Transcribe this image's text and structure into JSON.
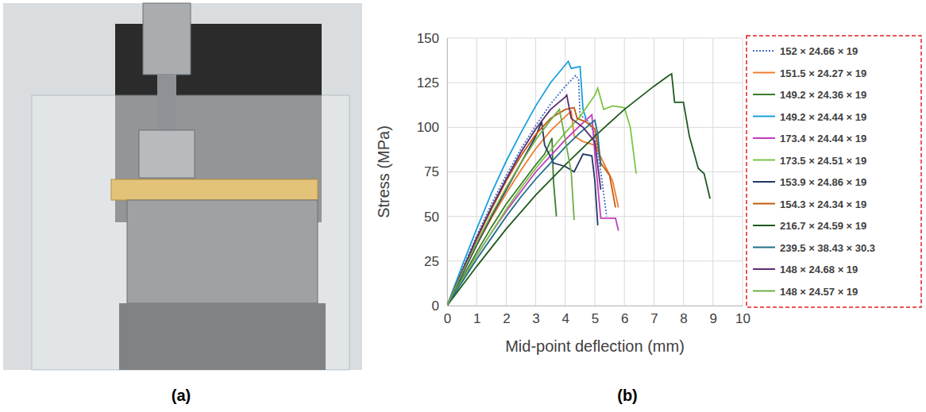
{
  "chart_data": [
    {
      "type": "image",
      "panel": "(a)"
    },
    {
      "type": "line",
      "panel": "(b)",
      "x_label": "Mid-point deflection (mm)",
      "y_label": "Stress (MPa)",
      "xlim": [
        0,
        10
      ],
      "xticks": [
        0,
        1,
        2,
        3,
        4,
        5,
        6,
        7,
        8,
        9,
        10
      ],
      "ylim": [
        0,
        150
      ],
      "yticks": [
        0,
        25,
        50,
        75,
        100,
        125,
        150
      ],
      "grid": true,
      "legend": "right",
      "series": [
        {
          "name": "152 × 24.66 × 19",
          "color": "#4472c4",
          "line_style": "dotted",
          "x": [
            0,
            0.5,
            1,
            1.5,
            2,
            2.5,
            3,
            3.5,
            4,
            4.35,
            4.45,
            4.5,
            4.8,
            5.0,
            5.2,
            5.4
          ],
          "values": [
            0,
            20,
            39,
            57,
            73,
            88,
            101,
            113,
            123,
            129,
            127,
            107,
            103,
            96,
            75,
            50
          ]
        },
        {
          "name": "151.5 × 24.27 × 19",
          "color": "#ed7d31",
          "line_style": "solid",
          "x": [
            0,
            0.5,
            1,
            1.5,
            2,
            2.5,
            3,
            3.5,
            4,
            4.2,
            4.3,
            4.6,
            5.0,
            5.3,
            5.6,
            5.8
          ],
          "values": [
            0,
            17,
            34,
            49,
            63,
            76,
            88,
            98,
            106,
            109,
            95,
            92,
            90,
            80,
            70,
            55
          ]
        },
        {
          "name": "149.2 × 24.36 × 19",
          "color": "#3a7d2c",
          "line_style": "solid",
          "x": [
            0,
            0.5,
            1,
            1.5,
            2,
            2.5,
            3,
            3.3,
            3.55,
            3.6,
            3.7
          ],
          "values": [
            0,
            15,
            30,
            44,
            57,
            68,
            79,
            85,
            94,
            70,
            50
          ]
        },
        {
          "name": "149.2 × 24.44 × 19",
          "color": "#1ca0dc",
          "line_style": "solid",
          "x": [
            0,
            0.5,
            1,
            1.5,
            2,
            2.5,
            3,
            3.5,
            4,
            4.1,
            4.2,
            4.5,
            4.6,
            4.7
          ],
          "values": [
            0,
            22,
            43,
            63,
            81,
            97,
            112,
            125,
            135,
            137,
            133,
            134,
            110,
            105
          ]
        },
        {
          "name": "173.4 × 24.44 × 19",
          "color": "#c03cc0",
          "line_style": "solid",
          "x": [
            0,
            0.5,
            1,
            1.5,
            2,
            2.5,
            3,
            3.5,
            4,
            4.5,
            4.9,
            5.0,
            5.2,
            5.5,
            5.7,
            5.8
          ],
          "values": [
            0,
            14,
            28,
            41,
            53,
            64,
            75,
            84,
            93,
            101,
            107,
            85,
            49,
            49,
            49,
            42
          ]
        },
        {
          "name": "173.5 × 24.51 × 19",
          "color": "#7cc444",
          "line_style": "solid",
          "x": [
            0,
            0.5,
            1,
            1.5,
            2,
            2.5,
            3,
            3.5,
            4,
            4.5,
            5,
            5.1,
            5.3,
            5.6,
            6.0,
            6.2,
            6.4
          ],
          "values": [
            0,
            14,
            28,
            41,
            54,
            66,
            77,
            87,
            97,
            106,
            118,
            122,
            110,
            112,
            111,
            100,
            74
          ]
        },
        {
          "name": "153.9 × 24.86 × 19",
          "color": "#1f3864",
          "line_style": "solid",
          "x": [
            0,
            0.5,
            1,
            1.5,
            2,
            2.5,
            3,
            3.2,
            3.3,
            3.6,
            4.0,
            4.3,
            4.6,
            4.9,
            5.0,
            5.1
          ],
          "values": [
            0,
            17,
            34,
            50,
            65,
            80,
            95,
            103,
            90,
            80,
            78,
            75,
            85,
            84,
            70,
            45
          ]
        },
        {
          "name": "154.3 × 24.34 × 19",
          "color": "#c55a11",
          "line_style": "solid",
          "x": [
            0,
            0.5,
            1,
            1.5,
            2,
            2.5,
            3,
            3.5,
            4,
            4.3,
            4.4,
            4.7,
            5.0,
            5.2,
            5.5,
            5.7
          ],
          "values": [
            0,
            19,
            37,
            54,
            70,
            84,
            96,
            105,
            110,
            111,
            105,
            103,
            99,
            80,
            73,
            55
          ]
        },
        {
          "name": "216.7 × 24.59 × 19",
          "color": "#1e5a1e",
          "line_style": "solid",
          "x": [
            0,
            1,
            2,
            3,
            4,
            5,
            6,
            7,
            7.5,
            7.6,
            7.7,
            8.0,
            8.2,
            8.5,
            8.7,
            8.9
          ],
          "values": [
            0,
            22,
            43,
            62,
            79,
            95,
            110,
            123,
            129,
            130,
            114,
            114,
            95,
            77,
            74,
            60
          ]
        },
        {
          "name": "239.5 × 38.43 × 30.3",
          "color": "#1f6f8b",
          "line_style": "solid",
          "x": [
            0,
            0.5,
            1,
            1.5,
            2,
            2.5,
            3,
            3.5,
            4,
            4.5,
            5,
            5.1,
            5.2
          ],
          "values": [
            0,
            13,
            26,
            38,
            50,
            61,
            71,
            80,
            89,
            97,
            104,
            96,
            78
          ]
        },
        {
          "name": "148 × 24.68 × 19",
          "color": "#5b2c6f",
          "line_style": "solid",
          "x": [
            0,
            0.5,
            1,
            1.5,
            2,
            2.5,
            3,
            3.5,
            4,
            4.05,
            4.2,
            4.6,
            5.0,
            5.2
          ],
          "values": [
            0,
            19,
            38,
            55,
            71,
            86,
            99,
            110,
            117,
            118,
            105,
            100,
            92,
            65
          ]
        },
        {
          "name": "148 × 24.57 × 19",
          "color": "#70ad47",
          "line_style": "solid",
          "x": [
            0,
            0.5,
            1,
            1.5,
            2,
            2.5,
            3,
            3.5,
            3.8,
            4.0,
            4.2,
            4.3
          ],
          "values": [
            0,
            18,
            35,
            51,
            66,
            80,
            93,
            104,
            110,
            93,
            75,
            48
          ]
        }
      ]
    }
  ]
}
